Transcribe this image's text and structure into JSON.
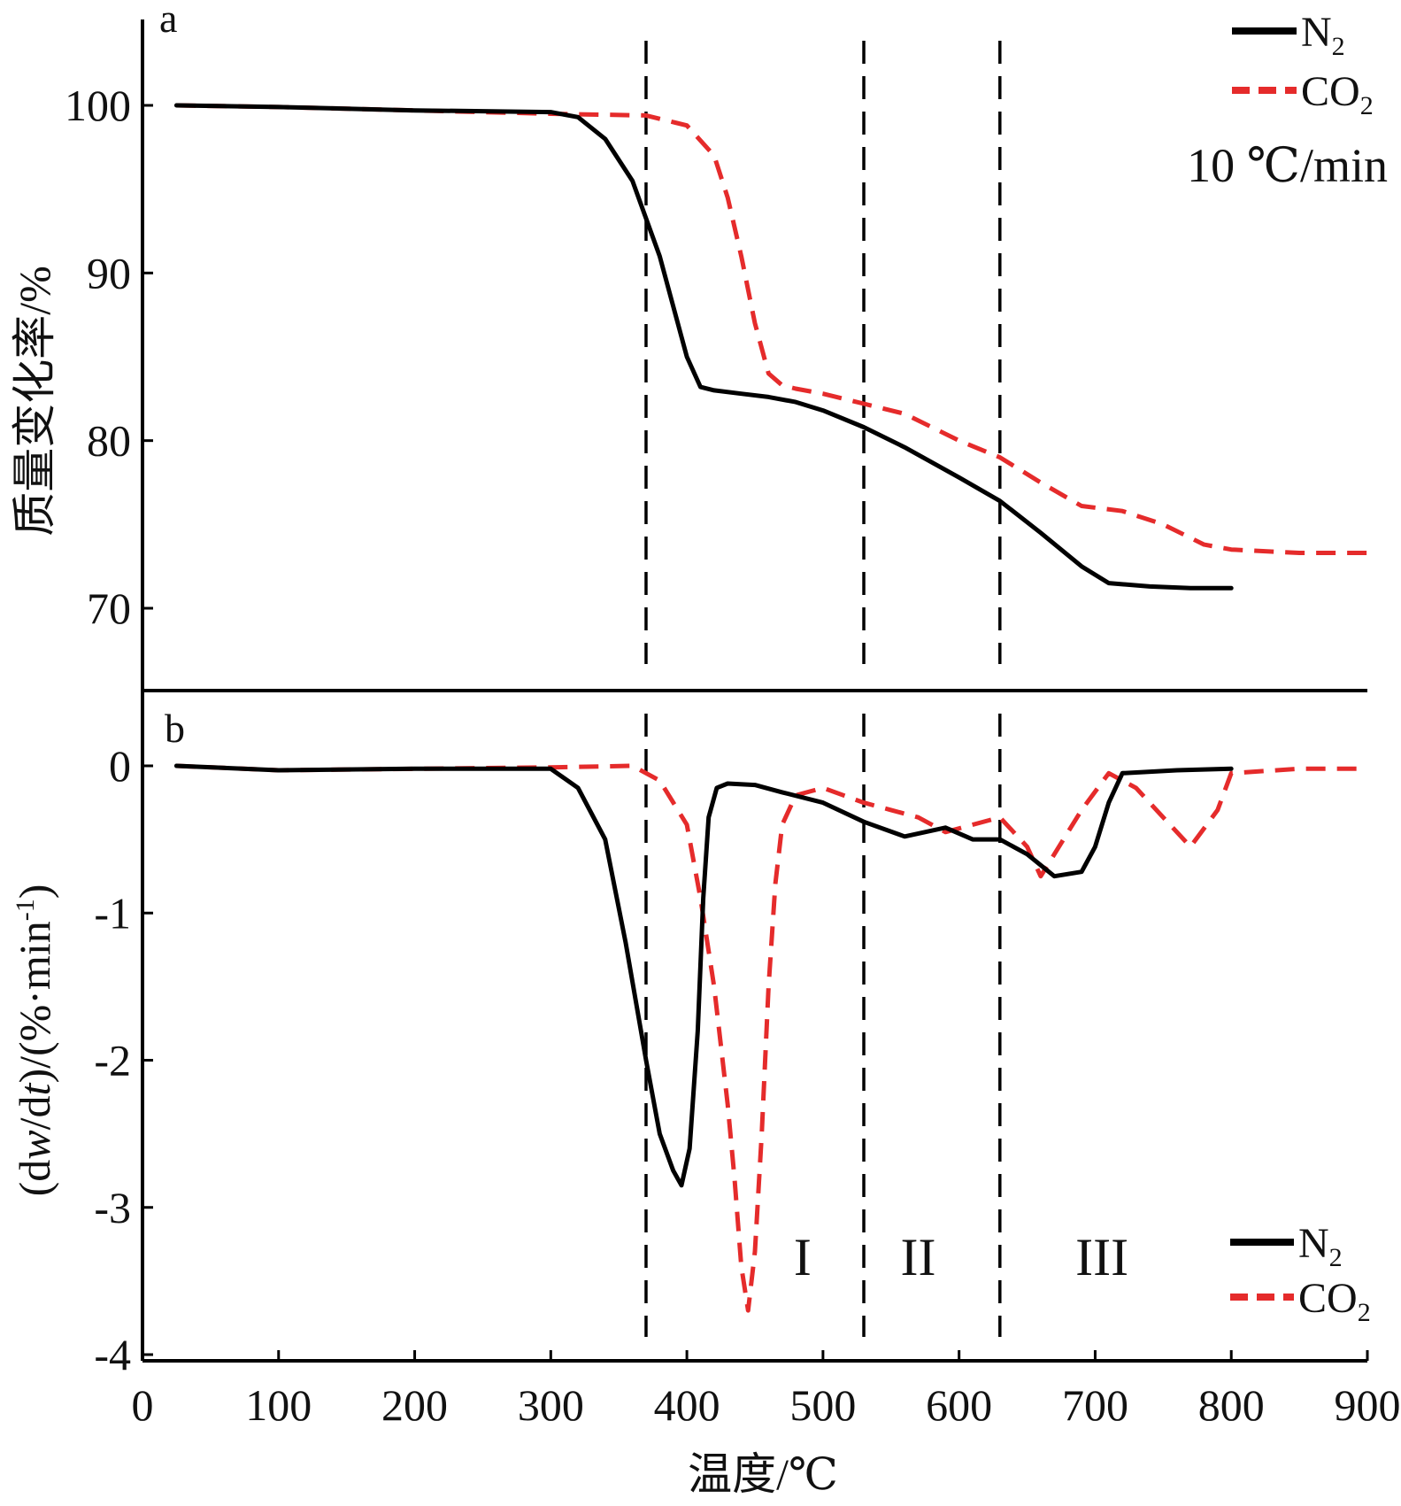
{
  "chart_data": [
    {
      "panel": "a",
      "type": "line",
      "ylabel": "质量变化率/%",
      "annotation": "10 ℃/min",
      "xlim": [
        0,
        900
      ],
      "ylim": [
        65,
        105
      ],
      "yticks": [
        70,
        80,
        90,
        100
      ],
      "grid": false,
      "legend_position": "top-right",
      "legend": [
        "N2",
        "CO2"
      ],
      "series": [
        {
          "name": "N2",
          "color": "#000000",
          "dash": "solid",
          "x": [
            25,
            100,
            200,
            300,
            320,
            340,
            360,
            380,
            400,
            410,
            420,
            440,
            460,
            480,
            500,
            530,
            560,
            600,
            630,
            660,
            690,
            710,
            740,
            770,
            800
          ],
          "y": [
            100,
            99.9,
            99.7,
            99.6,
            99.3,
            98,
            95.5,
            91,
            85,
            83.2,
            83,
            82.8,
            82.6,
            82.3,
            81.8,
            80.8,
            79.6,
            77.8,
            76.4,
            74.5,
            72.5,
            71.5,
            71.3,
            71.2,
            71.2
          ]
        },
        {
          "name": "CO2",
          "color": "#e52b2b",
          "dash": "dashed",
          "x": [
            25,
            100,
            200,
            300,
            370,
            400,
            420,
            430,
            440,
            450,
            460,
            470,
            480,
            500,
            530,
            560,
            600,
            630,
            660,
            690,
            720,
            750,
            780,
            800,
            850,
            900
          ],
          "y": [
            100,
            99.9,
            99.7,
            99.5,
            99.4,
            98.8,
            97,
            94.5,
            91,
            87,
            84,
            83.3,
            83.1,
            82.8,
            82.2,
            81.6,
            80,
            79,
            77.5,
            76.1,
            75.8,
            75,
            73.8,
            73.5,
            73.3,
            73.3
          ]
        }
      ]
    },
    {
      "panel": "b",
      "type": "line",
      "xlabel": "温度/℃",
      "ylabel": "(dw/dt)/(%·min-1)",
      "ylabel_parts": {
        "pre": "(d",
        "w": "w",
        "mid1": "/d",
        "t": "t",
        "mid2": ")/(%·min",
        "sup": "-1",
        "post": ")"
      },
      "xlim": [
        0,
        900
      ],
      "ylim": [
        -4,
        0.5
      ],
      "xticks": [
        0,
        100,
        200,
        300,
        400,
        500,
        600,
        700,
        800,
        900
      ],
      "yticks": [
        -4,
        -3,
        -2,
        -1,
        0
      ],
      "grid": false,
      "legend_position": "bottom-right",
      "legend": [
        "N2",
        "CO2"
      ],
      "series": [
        {
          "name": "N2",
          "color": "#000000",
          "dash": "solid",
          "x": [
            25,
            100,
            200,
            300,
            320,
            340,
            355,
            370,
            380,
            390,
            396,
            402,
            408,
            412,
            416,
            422,
            430,
            450,
            470,
            500,
            530,
            560,
            590,
            610,
            630,
            650,
            670,
            690,
            700,
            710,
            720,
            760,
            800
          ],
          "y": [
            0,
            -0.03,
            -0.02,
            -0.02,
            -0.15,
            -0.5,
            -1.2,
            -2.0,
            -2.5,
            -2.75,
            -2.85,
            -2.6,
            -1.8,
            -0.9,
            -0.35,
            -0.15,
            -0.12,
            -0.13,
            -0.18,
            -0.25,
            -0.38,
            -0.48,
            -0.42,
            -0.5,
            -0.5,
            -0.6,
            -0.75,
            -0.72,
            -0.55,
            -0.25,
            -0.05,
            -0.03,
            -0.02
          ]
        },
        {
          "name": "CO2",
          "color": "#e52b2b",
          "dash": "dashed",
          "x": [
            25,
            100,
            200,
            300,
            360,
            380,
            400,
            410,
            420,
            430,
            435,
            440,
            445,
            450,
            455,
            460,
            465,
            470,
            480,
            500,
            530,
            550,
            570,
            590,
            610,
            630,
            650,
            660,
            670,
            690,
            710,
            730,
            750,
            770,
            790,
            800,
            850,
            900
          ],
          "y": [
            0,
            -0.03,
            -0.02,
            -0.01,
            0,
            -0.1,
            -0.4,
            -0.9,
            -1.5,
            -2.3,
            -2.8,
            -3.4,
            -3.7,
            -3.3,
            -2.5,
            -1.5,
            -0.8,
            -0.4,
            -0.2,
            -0.15,
            -0.25,
            -0.3,
            -0.35,
            -0.45,
            -0.4,
            -0.35,
            -0.55,
            -0.75,
            -0.6,
            -0.3,
            -0.05,
            -0.15,
            -0.35,
            -0.55,
            -0.3,
            -0.05,
            -0.02,
            -0.02
          ]
        }
      ]
    }
  ],
  "vlines_x": [
    370,
    530,
    630
  ],
  "regions": [
    {
      "label": "I",
      "x": 485
    },
    {
      "label": "II",
      "x": 570
    },
    {
      "label": "III",
      "x": 705
    }
  ],
  "legend_entries": [
    {
      "base": "N",
      "sub": "2"
    },
    {
      "base": "CO",
      "sub": "2"
    }
  ]
}
